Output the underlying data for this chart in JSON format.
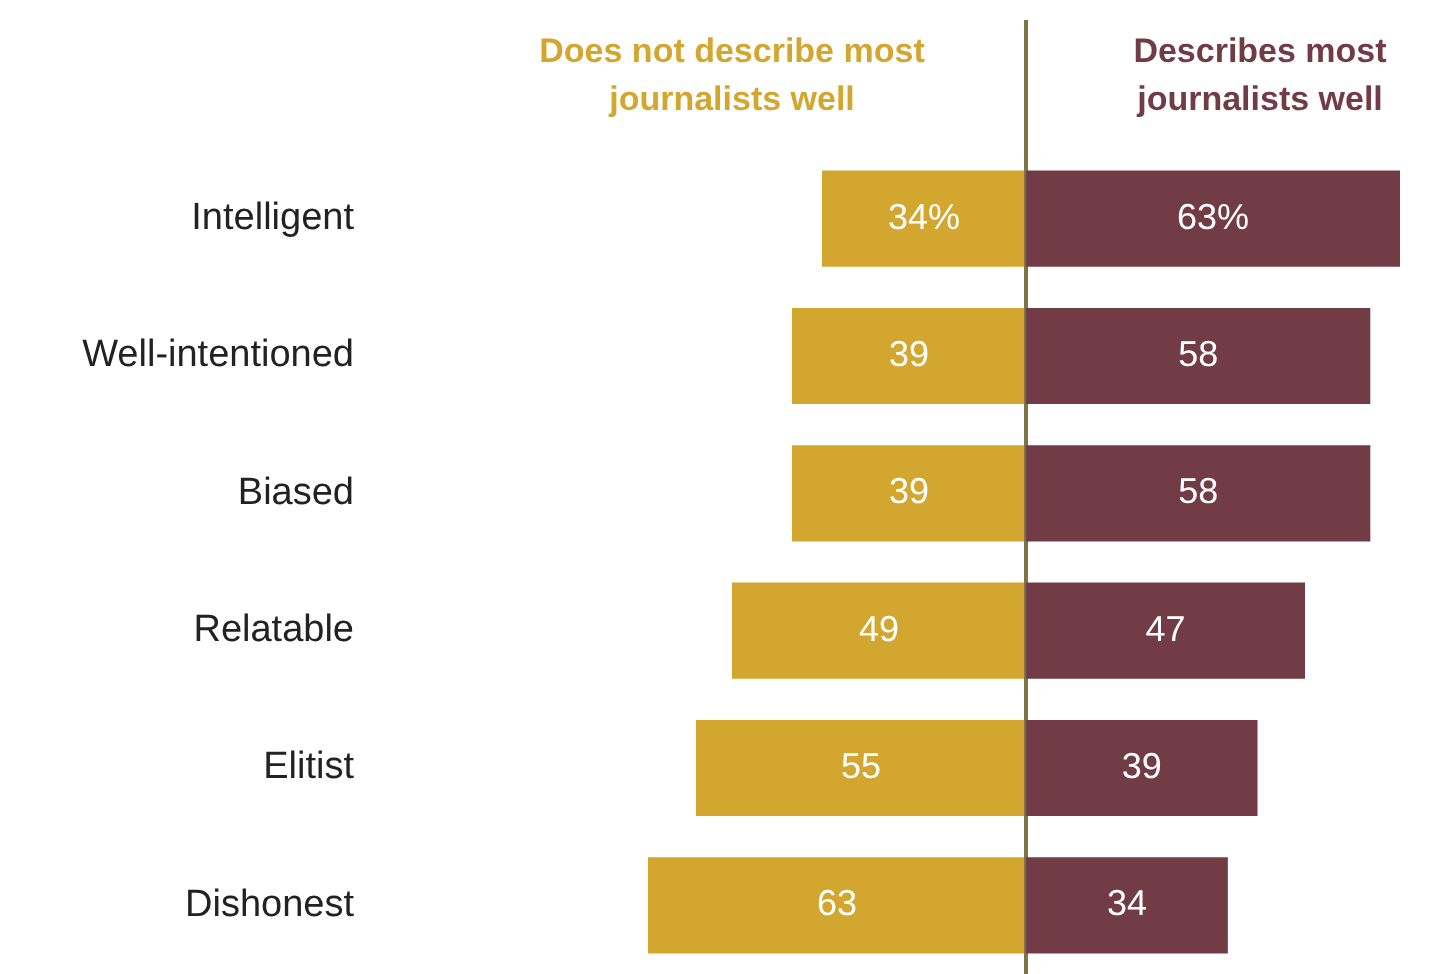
{
  "chart_data": [
    {
      "type": "bar",
      "orientation": "horizontal",
      "categories": [
        "Intelligent",
        "Well-intentioned",
        "Biased",
        "Relatable",
        "Elitist",
        "Dishonest"
      ],
      "series": [
        {
          "name": "Does not describe most journalists well",
          "color": "#d3a72f",
          "values": [
            34,
            39,
            39,
            49,
            55,
            63
          ],
          "value_labels": [
            "34%",
            "39",
            "39",
            "49",
            "55",
            "63"
          ]
        }
      ],
      "xlim": [
        63,
        0
      ],
      "tick_labels": "y",
      "legend": "top",
      "ref_lines": [
        {
          "axis": "x",
          "value": 0,
          "color": "#7d7545"
        }
      ]
    },
    {
      "type": "bar",
      "orientation": "horizontal",
      "categories": [
        null,
        null,
        null,
        null,
        null,
        null
      ],
      "series": [
        {
          "name": "Describes most journalists well",
          "color": "#723c47",
          "values": [
            63,
            58,
            58,
            47,
            39,
            34
          ],
          "value_labels": [
            "63%",
            "58",
            "58",
            "47",
            "39",
            "34"
          ]
        }
      ],
      "xlim": [
        0,
        63
      ],
      "tick_labels": false,
      "legend": "top"
    }
  ]
}
